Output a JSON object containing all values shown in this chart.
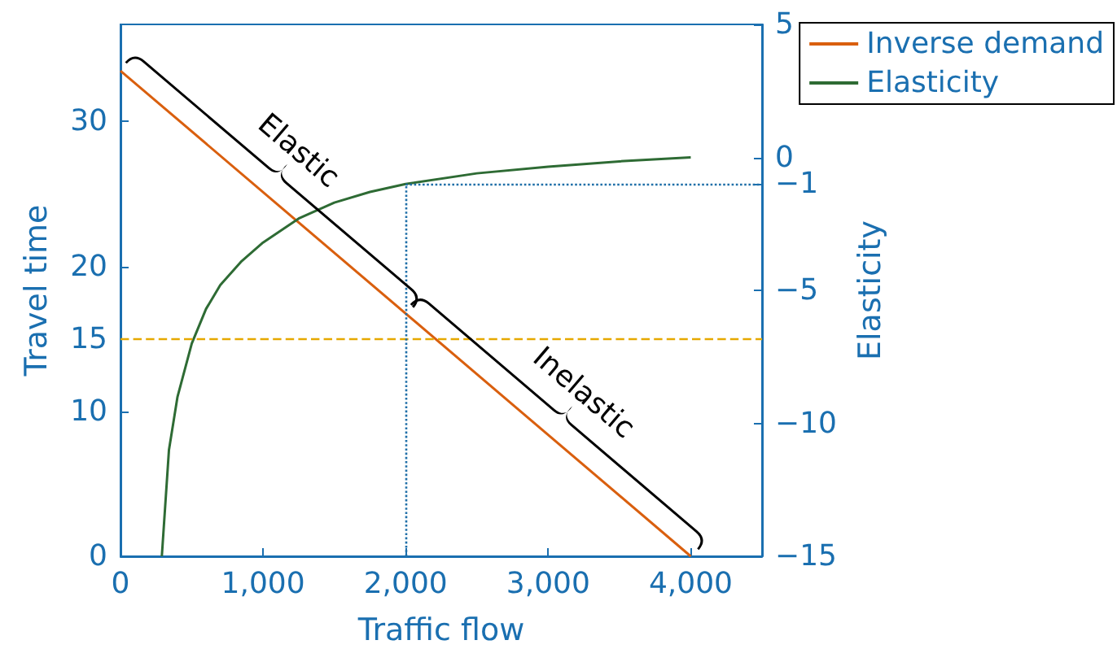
{
  "chart_data": {
    "type": "line",
    "xlabel": "Traffic flow",
    "ylabel": "Travel time",
    "y2label": "Elasticity",
    "xlim": [
      0,
      4500
    ],
    "xticks": [
      0,
      {
        "value": 1000,
        "label": "1,000"
      },
      {
        "value": 2000,
        "label": "2,000"
      },
      {
        "value": 3000,
        "label": "3,000"
      },
      {
        "value": 4000,
        "label": "4,000"
      }
    ],
    "ylim": [
      0,
      36.7
    ],
    "yticks": [
      0,
      10,
      15,
      20,
      30
    ],
    "y2lim": [
      -15,
      5
    ],
    "y2ticks": [
      {
        "value": -15,
        "label": "−15"
      },
      {
        "value": -10,
        "label": "−10"
      },
      {
        "value": -5,
        "label": "−5"
      },
      {
        "value": -1,
        "label": "−1"
      },
      0,
      5
    ],
    "series": [
      {
        "name": "Inverse demand",
        "color": "#d95f0e",
        "x": [
          0,
          4000
        ],
        "values": [
          33.5,
          0
        ]
      },
      {
        "name": "Elasticity",
        "color": "#2e6b34",
        "axis": "y2",
        "x": [
          290,
          340,
          400,
          500,
          600,
          700,
          850,
          1000,
          1250,
          1500,
          1750,
          2000,
          2500,
          3000,
          3500,
          4000
        ],
        "values": [
          -15,
          -11,
          -9,
          -7,
          -5.7,
          -4.8,
          -3.9,
          -3.2,
          -2.3,
          -1.7,
          -1.3,
          -1,
          -0.6,
          -0.35,
          -0.15,
          0
        ]
      }
    ],
    "ref_lines": [
      {
        "axis": "y",
        "value": 15,
        "color": "#e6a800",
        "line_style": "dashed"
      },
      {
        "axis": "x",
        "value": 2000,
        "color": "#1f6fa8",
        "line_style": "dotted"
      },
      {
        "axis": "y2",
        "value": -1,
        "color": "#1f6fa8",
        "line_style": "dotted"
      }
    ],
    "annotations": [
      {
        "text": "Elastic",
        "x": 1000,
        "y": 25.1
      },
      {
        "text": "Inelastic",
        "x": 3000,
        "y": 8.4
      }
    ],
    "legend": "top right",
    "marker": "none",
    "line_style": "solid",
    "grid": false
  }
}
